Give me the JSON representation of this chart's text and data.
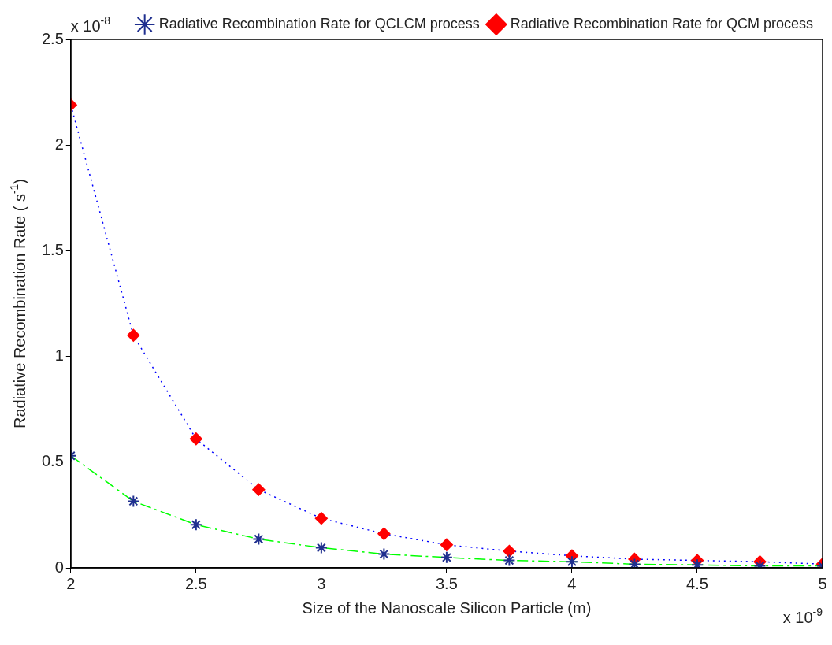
{
  "chart_data": {
    "type": "line",
    "xlabel": "Size of the Nanoscale Silicon Particle (m)",
    "ylabel": "Radiative Recombination Rate ( s$^{-1}$)",
    "annotations": [
      "x 10$^{-8}$",
      "x 10$^{-9}$"
    ],
    "x": [
      2,
      2.25,
      2.5,
      2.75,
      3,
      3.25,
      3.5,
      3.75,
      4,
      4.25,
      4.5,
      4.75,
      5
    ],
    "series": [
      {
        "name": "Radiative Recombination Rate for QCLCM process",
        "color": "#00ff00",
        "colors": [
          "#1f2f8f",
          "#1f2f8f",
          "#1f2f8f",
          "#1f2f8f",
          "#1f2f8f",
          "#1f2f8f",
          "#1f2f8f",
          "#1f2f8f",
          "#1f2f8f",
          "#1f2f8f",
          "#1f2f8f",
          "#1f2f8f",
          "#1f2f8f"
        ],
        "marker": "cross",
        "line_style": "dashed",
        "values": [
          0.53,
          0.315,
          0.204,
          0.136,
          0.095,
          0.065,
          0.049,
          0.035,
          0.029,
          0.017,
          0.014,
          0.009,
          0.009
        ]
      },
      {
        "name": "Radiative Recombination Rate for QCM process",
        "color": "#0000ff",
        "colors": [
          "#ff0000",
          "#ff0000",
          "#ff0000",
          "#ff0000",
          "#ff0000",
          "#ff0000",
          "#ff0000",
          "#ff0000",
          "#ff0000",
          "#ff0000",
          "#ff0000",
          "#ff0000",
          "#ff0000"
        ],
        "marker": "diamond",
        "line_style": "dotted",
        "values": [
          2.19,
          1.1,
          0.61,
          0.37,
          0.234,
          0.161,
          0.109,
          0.079,
          0.057,
          0.041,
          0.035,
          0.029,
          0.018
        ]
      }
    ],
    "xlim": [
      2,
      5
    ],
    "xticks": [
      2,
      2.5,
      3,
      3.5,
      4,
      4.5,
      5
    ],
    "ylim": [
      0,
      2.5
    ],
    "yticks": [
      0,
      0.5,
      1,
      1.5,
      2,
      2.5
    ],
    "grid": false,
    "legend": "top right"
  }
}
